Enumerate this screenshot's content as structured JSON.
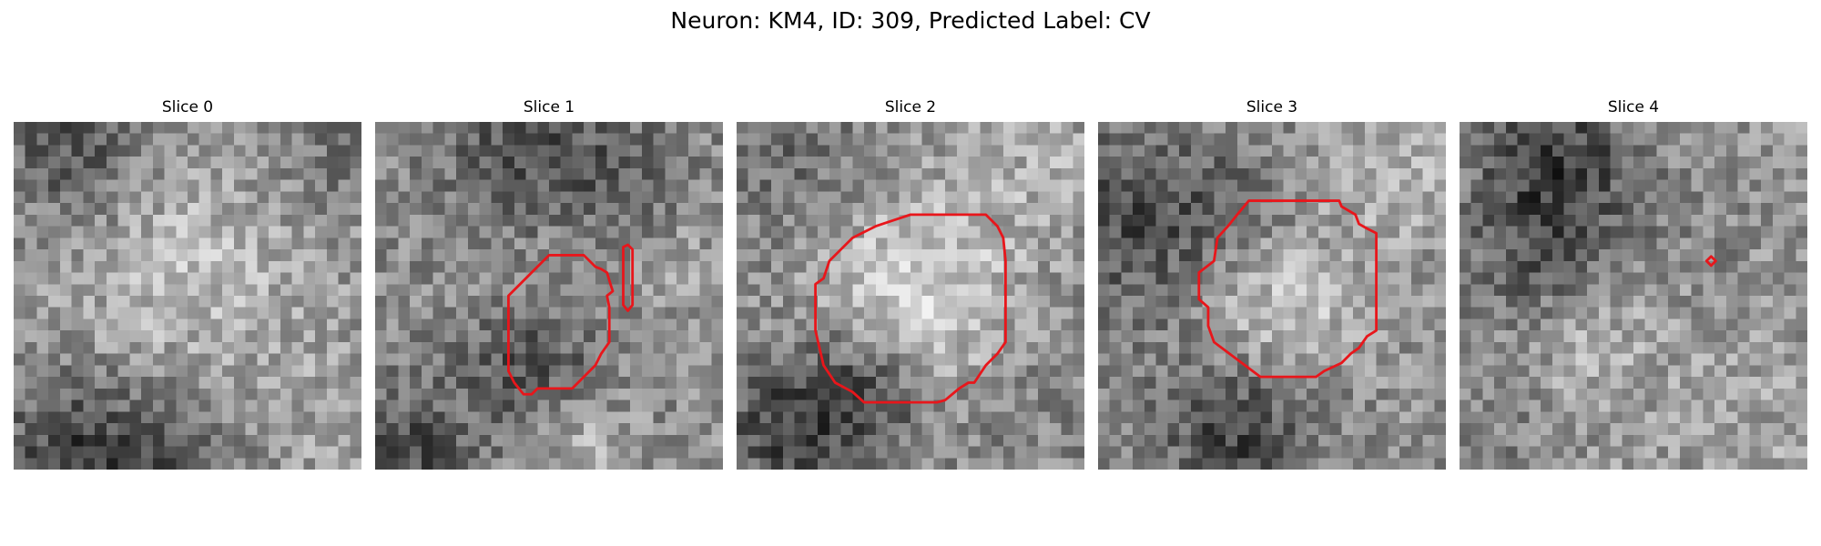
{
  "figure": {
    "title": "Neuron: KM4, ID: 309, Predicted Label: CV"
  },
  "panels": [
    {
      "title": "Slice 0",
      "has_contour": false
    },
    {
      "title": "Slice 1",
      "has_contour": true
    },
    {
      "title": "Slice 2",
      "has_contour": true
    },
    {
      "title": "Slice 3",
      "has_contour": true
    },
    {
      "title": "Slice 4",
      "has_contour": true
    }
  ],
  "colors": {
    "contour": "#e8161b",
    "background": "#ffffff"
  }
}
